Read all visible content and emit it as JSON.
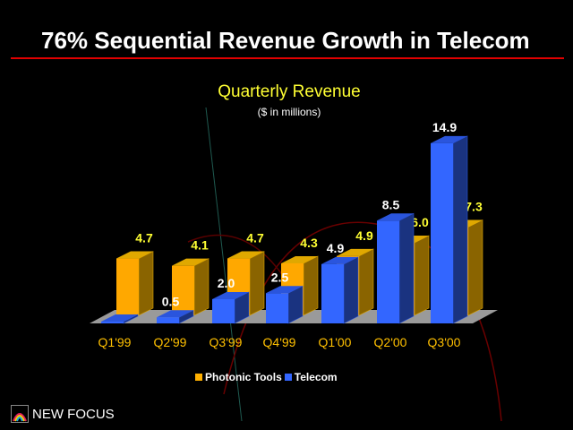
{
  "slide_title": "76% Sequential Revenue Growth in Telecom",
  "logo_text": "NEW FOCUS",
  "colors": {
    "photonic": "#ffb000",
    "telecom": "#3366ff",
    "title_rule": "#e00000"
  },
  "chart_data": {
    "type": "bar",
    "title": "Quarterly Revenue",
    "subtitle": "($ in millions)",
    "categories": [
      "Q1'99",
      "Q2'99",
      "Q3'99",
      "Q4'99",
      "Q1'00",
      "Q2'00",
      "Q3'00"
    ],
    "series": [
      {
        "name": "Photonic Tools",
        "values": [
          4.7,
          4.1,
          4.7,
          4.3,
          4.9,
          6.0,
          7.3
        ],
        "labels": [
          "4.7",
          "4.1",
          "4.7",
          "4.3",
          "4.9",
          "6.0",
          "7.3"
        ]
      },
      {
        "name": "Telecom",
        "values": [
          0,
          0.5,
          2.0,
          2.5,
          4.9,
          8.5,
          14.9
        ],
        "labels": [
          "",
          "0.5",
          "2.0",
          "2.5",
          "4.9",
          "8.5",
          "14.9"
        ]
      }
    ],
    "legend": "bottom",
    "grid": false,
    "ylim": [
      0,
      15
    ]
  }
}
